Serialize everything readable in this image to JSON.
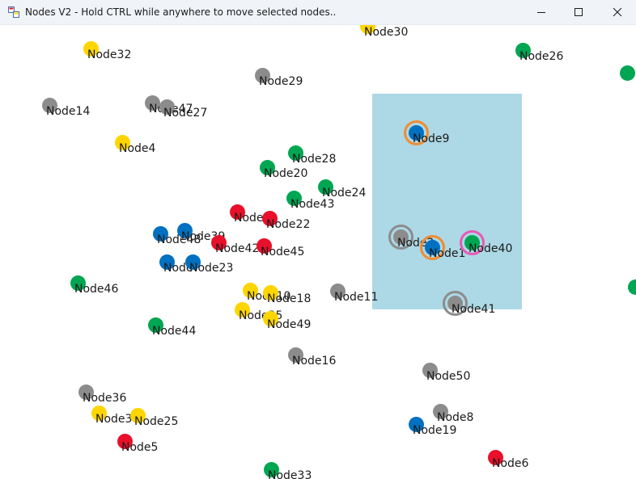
{
  "window": {
    "title": "Nodes V2 - Hold CTRL while anywhere to move selected nodes.."
  },
  "colors": {
    "grey": "#8c8c8c",
    "yellow": "#ffd500",
    "green": "#00a651",
    "red": "#e8102a",
    "blue": "#0070c0",
    "ring_orange": "#f08c32",
    "ring_pink": "#e85ab4",
    "ring_grey": "#8c8c8c",
    "selection": "#add8e6"
  },
  "nodes": [
    {
      "label": "Node30",
      "color": "yellow"
    },
    {
      "label": "Node32",
      "color": "yellow"
    },
    {
      "label": "Node26",
      "color": "green"
    },
    {
      "label": "Node29",
      "color": "grey"
    },
    {
      "label": "Node14",
      "color": "grey"
    },
    {
      "label": "Node47",
      "color": "grey"
    },
    {
      "label": "Node27",
      "color": "grey"
    },
    {
      "label": "Node4",
      "color": "yellow"
    },
    {
      "label": "Node28",
      "color": "green"
    },
    {
      "label": "Node20",
      "color": "green"
    },
    {
      "label": "Node24",
      "color": "green"
    },
    {
      "label": "Node43",
      "color": "green"
    },
    {
      "label": "Node21",
      "color": "red"
    },
    {
      "label": "Node22",
      "color": "red"
    },
    {
      "label": "Node48",
      "color": "blue"
    },
    {
      "label": "Node39",
      "color": "blue"
    },
    {
      "label": "Node42",
      "color": "red"
    },
    {
      "label": "Node45",
      "color": "red"
    },
    {
      "label": "Node7",
      "color": "blue"
    },
    {
      "label": "Node23",
      "color": "blue"
    },
    {
      "label": "Node46",
      "color": "green"
    },
    {
      "label": "Node10",
      "color": "yellow"
    },
    {
      "label": "Node18",
      "color": "yellow"
    },
    {
      "label": "Node35",
      "color": "yellow"
    },
    {
      "label": "Node49",
      "color": "yellow"
    },
    {
      "label": "Node11",
      "color": "grey"
    },
    {
      "label": "Node44",
      "color": "green"
    },
    {
      "label": "Node16",
      "color": "grey"
    },
    {
      "label": "Node50",
      "color": "grey"
    },
    {
      "label": "Node36",
      "color": "grey"
    },
    {
      "label": "Node34",
      "color": "yellow"
    },
    {
      "label": "Node25",
      "color": "yellow"
    },
    {
      "label": "Node8",
      "color": "grey"
    },
    {
      "label": "Node19",
      "color": "blue"
    },
    {
      "label": "Node5",
      "color": "red"
    },
    {
      "label": "Node6",
      "color": "red"
    },
    {
      "label": "Node33",
      "color": "green"
    },
    {
      "label": "Node9",
      "color": "blue",
      "ring": "ring_orange"
    },
    {
      "label": "Node2",
      "color": "grey",
      "ring": "ring_grey"
    },
    {
      "label": "Node1",
      "color": "blue",
      "ring": "ring_orange"
    },
    {
      "label": "Node40",
      "color": "green",
      "ring": "ring_pink"
    },
    {
      "label": "Node41",
      "color": "grey",
      "ring": "ring_grey"
    },
    {
      "label": "",
      "color": "green"
    },
    {
      "label": "",
      "color": "green"
    }
  ]
}
